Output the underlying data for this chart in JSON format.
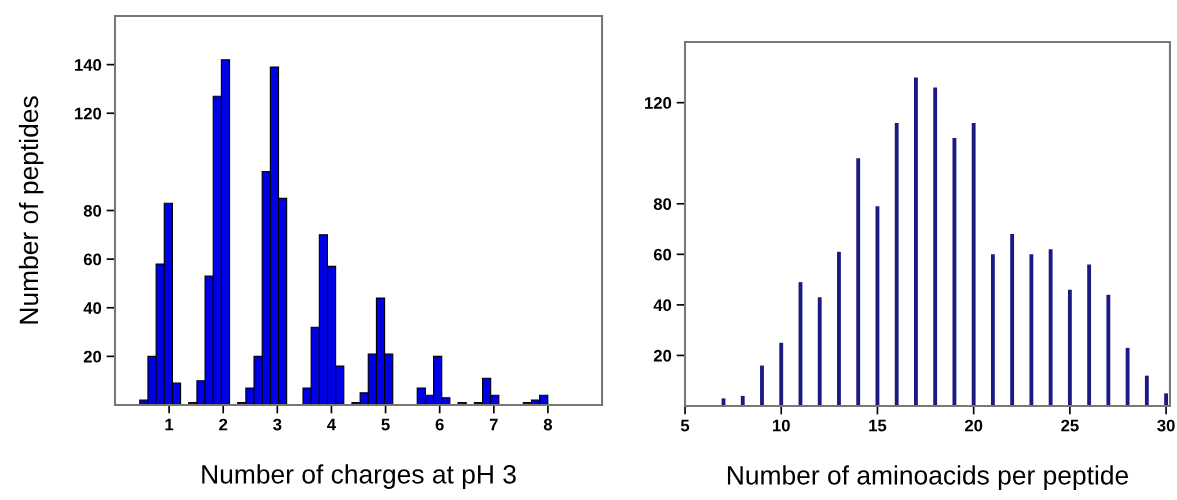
{
  "chart_data": [
    {
      "type": "histogram",
      "xlabel": "Number of charges at pH 3",
      "ylabel": "Number of peptides",
      "color": "#0000e6",
      "bins": [
        0.458,
        0.609,
        0.76,
        0.91,
        1.061,
        1.212,
        1.363,
        1.514,
        1.664,
        1.815,
        1.966,
        2.117,
        2.268,
        2.418,
        2.569,
        2.72,
        2.871,
        3.022,
        3.172,
        3.323,
        3.474,
        3.625,
        3.776,
        3.926,
        4.077,
        4.228,
        4.379,
        4.53,
        4.68,
        4.831,
        4.982,
        5.133,
        5.284,
        5.434,
        5.585,
        5.736,
        5.887,
        6.038,
        6.188,
        6.339,
        6.49,
        6.641,
        6.792,
        6.942,
        7.093,
        7.244,
        7.395,
        7.546,
        7.696,
        7.847,
        7.998
      ],
      "values": [
        2,
        20,
        58,
        83,
        9,
        0,
        1,
        10,
        53,
        127,
        142,
        0,
        1,
        7,
        20,
        96,
        139,
        85,
        0,
        0,
        7,
        32,
        70,
        57,
        16,
        0,
        1,
        5,
        21,
        44,
        21,
        0,
        0,
        0,
        7,
        4,
        20,
        3,
        0,
        1,
        0,
        1,
        11,
        4,
        0,
        0,
        0,
        1,
        2,
        4
      ],
      "xlim": [
        0,
        9
      ],
      "xticks": [
        1,
        2,
        3,
        4,
        5,
        6,
        7,
        8
      ],
      "ylim": [
        0,
        160
      ],
      "yticks": [
        20,
        40,
        60,
        80,
        120,
        140
      ]
    },
    {
      "type": "bar",
      "xlabel": "Number of aminoacids per peptide",
      "color": "#1a1a80",
      "x": [
        7,
        8,
        9,
        10,
        11,
        12,
        13,
        14,
        15,
        16,
        17,
        18,
        19,
        20,
        21,
        22,
        23,
        24,
        25,
        26,
        27,
        28,
        29,
        30
      ],
      "values": [
        3,
        4,
        16,
        25,
        49,
        43,
        61,
        98,
        79,
        112,
        130,
        126,
        106,
        112,
        60,
        68,
        60,
        62,
        46,
        56,
        44,
        23,
        12,
        5
      ],
      "xlim": [
        5,
        30.2
      ],
      "xticks": [
        5,
        10,
        15,
        20,
        25,
        30
      ],
      "ylim": [
        0,
        144
      ],
      "yticks": [
        20,
        40,
        60,
        80,
        120
      ]
    }
  ]
}
